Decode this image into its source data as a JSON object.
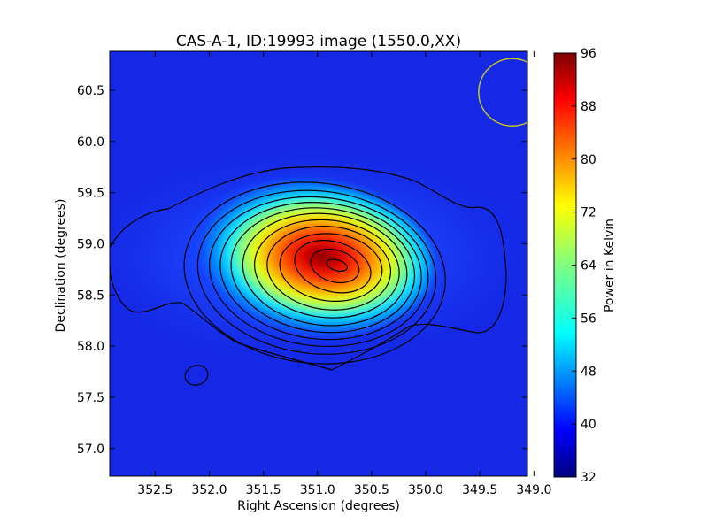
{
  "chart_data": {
    "type": "heatmap",
    "title": "CAS-A-1, ID:19993 image (1550.0,XX)",
    "xlabel": "Right Ascension (degrees)",
    "ylabel": "Declination (degrees)",
    "x_ticks": [
      "352.5",
      "352.0",
      "351.5",
      "351.0",
      "350.5",
      "350.0",
      "349.5",
      "349.0"
    ],
    "y_ticks": [
      "57.0",
      "57.5",
      "58.0",
      "58.5",
      "59.0",
      "59.5",
      "60.0",
      "60.5"
    ],
    "xlim": [
      352.92,
      349.06
    ],
    "ylim": [
      56.73,
      60.88
    ],
    "x_reversed": true,
    "colorbar": {
      "label": "Power in Kelvin",
      "colormap": "jet",
      "range": [
        32,
        96
      ],
      "ticks": [
        "32",
        "40",
        "48",
        "56",
        "64",
        "72",
        "80",
        "88",
        "96"
      ]
    },
    "peak": {
      "ra": 350.82,
      "dec": 58.79,
      "value": 96
    },
    "contours": "black contour lines around the central source",
    "beam": {
      "ra": 349.2,
      "dec": 60.48,
      "color": "#c8c820"
    }
  }
}
